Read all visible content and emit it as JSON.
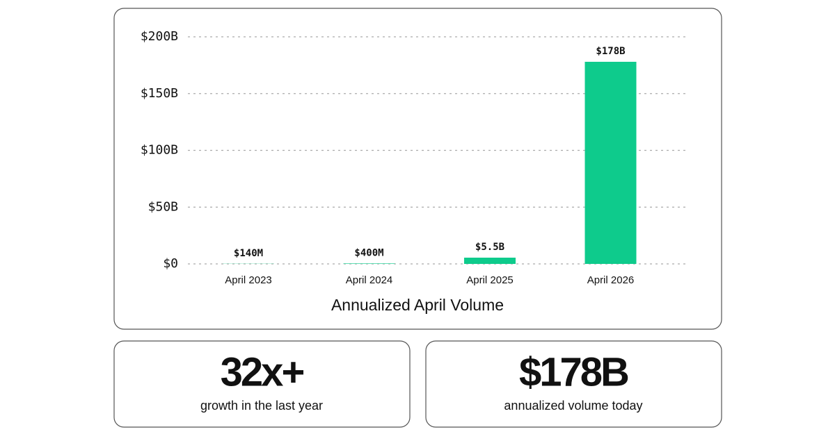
{
  "chart_data": {
    "type": "bar",
    "x_label": "Annualized April Volume",
    "categories": [
      "April 2023",
      "April 2024",
      "April 2025",
      "April 2026"
    ],
    "values": [
      140000000,
      400000000,
      5500000000,
      178000000000
    ],
    "value_labels": [
      "$140M",
      "$400M",
      "$5.5B",
      "$178B"
    ],
    "color": "#0ecb8c",
    "ylim": [
      0,
      200000000000
    ],
    "yticks": [
      {
        "value": 0,
        "label": "$0"
      },
      {
        "value": 50000000000,
        "label": "$50B"
      },
      {
        "value": 100000000000,
        "label": "$100B"
      },
      {
        "value": 150000000000,
        "label": "$150B"
      },
      {
        "value": 200000000000,
        "label": "$200B"
      }
    ],
    "grid": true
  },
  "stats": [
    {
      "value": "32x+",
      "label": "growth in the last year"
    },
    {
      "value": "$178B",
      "label": "annualized volume today"
    }
  ]
}
